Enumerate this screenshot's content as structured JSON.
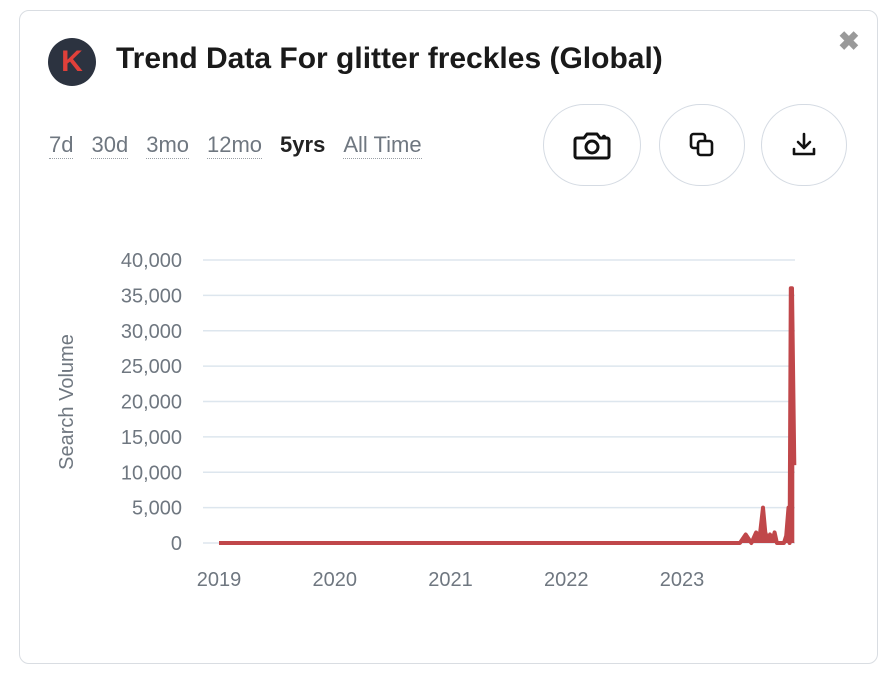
{
  "header": {
    "logo_letter": "K",
    "title": "Trend Data For glitter freckles (Global)"
  },
  "icons": {
    "close": "close-icon",
    "camera": "camera-icon",
    "copy": "copy-icon",
    "download": "download-icon"
  },
  "ranges": [
    {
      "label": "7d",
      "active": false
    },
    {
      "label": "30d",
      "active": false
    },
    {
      "label": "3mo",
      "active": false
    },
    {
      "label": "12mo",
      "active": false
    },
    {
      "label": "5yrs",
      "active": true
    },
    {
      "label": "All Time",
      "active": false
    }
  ],
  "colors": {
    "series": "#c0474a",
    "grid": "#dde6ee",
    "text": "#6f7780"
  },
  "chart_data": {
    "type": "area",
    "title": "",
    "xlabel": "",
    "ylabel": "Search Volume",
    "ylim": [
      0,
      40000
    ],
    "xlim": [
      2019.0,
      2023.97
    ],
    "yticks": [
      0,
      5000,
      10000,
      15000,
      20000,
      25000,
      30000,
      35000,
      40000
    ],
    "ytick_labels": [
      "0",
      "5,000",
      "10,000",
      "15,000",
      "20,000",
      "25,000",
      "30,000",
      "35,000",
      "40,000"
    ],
    "xticks": [
      2019,
      2020,
      2021,
      2022,
      2023
    ],
    "xtick_labels": [
      "2019",
      "2020",
      "2021",
      "2022",
      "2023"
    ],
    "grid": true,
    "legend": "none",
    "series": [
      {
        "x": [
          2019.0,
          2023.5,
          2023.55,
          2023.6,
          2023.64,
          2023.67,
          2023.7,
          2023.72,
          2023.74,
          2023.76,
          2023.78,
          2023.8,
          2023.82,
          2023.85,
          2023.88,
          2023.9,
          2023.92,
          2023.93,
          2023.94,
          2023.95,
          2023.97
        ],
        "y": [
          0,
          0,
          1200,
          0,
          1500,
          800,
          5000,
          1500,
          500,
          1200,
          300,
          1500,
          0,
          0,
          0,
          1000,
          5000,
          0,
          36000,
          36000,
          11000
        ]
      }
    ]
  }
}
